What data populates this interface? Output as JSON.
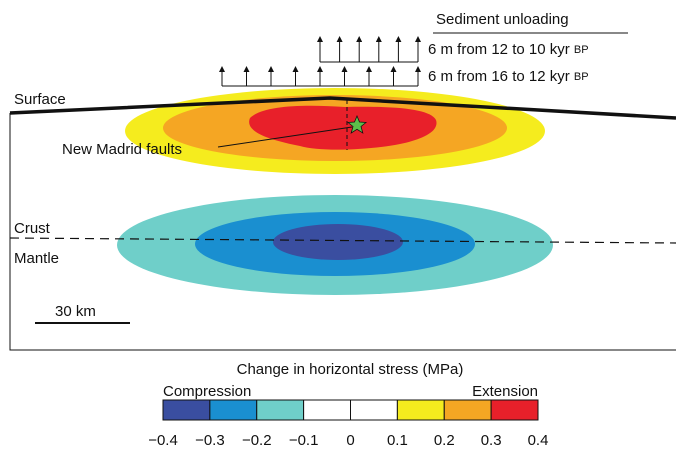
{
  "header": {
    "title": "Sediment unloading"
  },
  "unloading": [
    {
      "text": "6 m from 12 to 10 kyr",
      "era": "BP"
    },
    {
      "text": "6 m from 16 to 12 kyr",
      "era": "BP"
    }
  ],
  "labels": {
    "surface": "Surface",
    "faults": "New Madrid faults",
    "crust": "Crust",
    "mantle": "Mantle",
    "scale": "30 km"
  },
  "colorbar": {
    "title": "Change in horizontal stress (MPa)",
    "left": "Compression",
    "right": "Extension",
    "ticks": [
      "−0.4",
      "−0.3",
      "−0.2",
      "−0.1",
      "0",
      "0.1",
      "0.2",
      "0.3",
      "0.4"
    ]
  }
}
